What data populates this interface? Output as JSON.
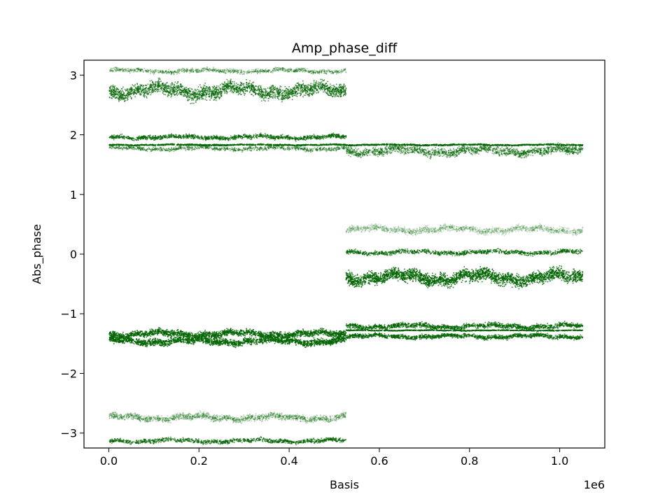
{
  "chart_data": {
    "type": "scatter",
    "title": "Amp_phase_diff",
    "xlabel": "Basis",
    "ylabel": "Abs_phase",
    "x_offset_label": "1e6",
    "xlim": [
      -55000,
      1100000
    ],
    "ylim": [
      -3.25,
      3.25
    ],
    "x_tick_values": [
      0,
      200000,
      400000,
      600000,
      800000,
      1000000
    ],
    "x_tick_labels": [
      "0.0",
      "0.2",
      "0.4",
      "0.6",
      "0.8",
      "1.0"
    ],
    "y_tick_values": [
      -3,
      -2,
      -1,
      0,
      1,
      2,
      3
    ],
    "y_tick_labels": [
      "−3",
      "−2",
      "−1",
      "0",
      "1",
      "2",
      "3"
    ],
    "grid": false,
    "legend": "none",
    "color": "#006400",
    "series": [
      {
        "x_range": [
          0,
          525000
        ],
        "y_center": 3.08,
        "y_spread": 0.05,
        "opacity": 0.35,
        "density": 1.0
      },
      {
        "x_range": [
          0,
          525000
        ],
        "y_center": 2.75,
        "y_spread": 0.16,
        "opacity": 0.7,
        "density": 2.2
      },
      {
        "x_range": [
          0,
          525000
        ],
        "y_center": 1.97,
        "y_spread": 0.05,
        "opacity": 0.7,
        "density": 1.2
      },
      {
        "x_range": [
          0,
          525000
        ],
        "y_center": 1.84,
        "y_spread": 0.015,
        "opacity": 0.95,
        "density": 1.0
      },
      {
        "x_range": [
          0,
          525000
        ],
        "y_center": 1.78,
        "y_spread": 0.05,
        "opacity": 0.5,
        "density": 0.8
      },
      {
        "x_range": [
          0,
          525000
        ],
        "y_center": -1.33,
        "y_spread": 0.08,
        "opacity": 0.85,
        "density": 1.8
      },
      {
        "x_range": [
          0,
          525000
        ],
        "y_center": -1.45,
        "y_spread": 0.08,
        "opacity": 0.85,
        "density": 1.8
      },
      {
        "x_range": [
          0,
          525000
        ],
        "y_center": -2.73,
        "y_spread": 0.08,
        "opacity": 0.3,
        "density": 1.6
      },
      {
        "x_range": [
          0,
          525000
        ],
        "y_center": -3.12,
        "y_spread": 0.05,
        "opacity": 0.7,
        "density": 1.0
      },
      {
        "x_range": [
          525000,
          1050000
        ],
        "y_center": 1.84,
        "y_spread": 0.015,
        "opacity": 0.95,
        "density": 1.0
      },
      {
        "x_range": [
          525000,
          1050000
        ],
        "y_center": 1.74,
        "y_spread": 0.1,
        "opacity": 0.55,
        "density": 1.6
      },
      {
        "x_range": [
          525000,
          1050000
        ],
        "y_center": 0.42,
        "y_spread": 0.08,
        "opacity": 0.2,
        "density": 1.6
      },
      {
        "x_range": [
          525000,
          1050000
        ],
        "y_center": 0.04,
        "y_spread": 0.05,
        "opacity": 0.7,
        "density": 1.0
      },
      {
        "x_range": [
          525000,
          1050000
        ],
        "y_center": -0.38,
        "y_spread": 0.15,
        "opacity": 0.85,
        "density": 2.4
      },
      {
        "x_range": [
          525000,
          1050000
        ],
        "y_center": -1.2,
        "y_spread": 0.06,
        "opacity": 0.75,
        "density": 1.4
      },
      {
        "x_range": [
          525000,
          1050000
        ],
        "y_center": -1.27,
        "y_spread": 0.01,
        "opacity": 0.95,
        "density": 0.8
      },
      {
        "x_range": [
          525000,
          1050000
        ],
        "y_center": -1.37,
        "y_spread": 0.05,
        "opacity": 0.75,
        "density": 1.4
      }
    ]
  }
}
